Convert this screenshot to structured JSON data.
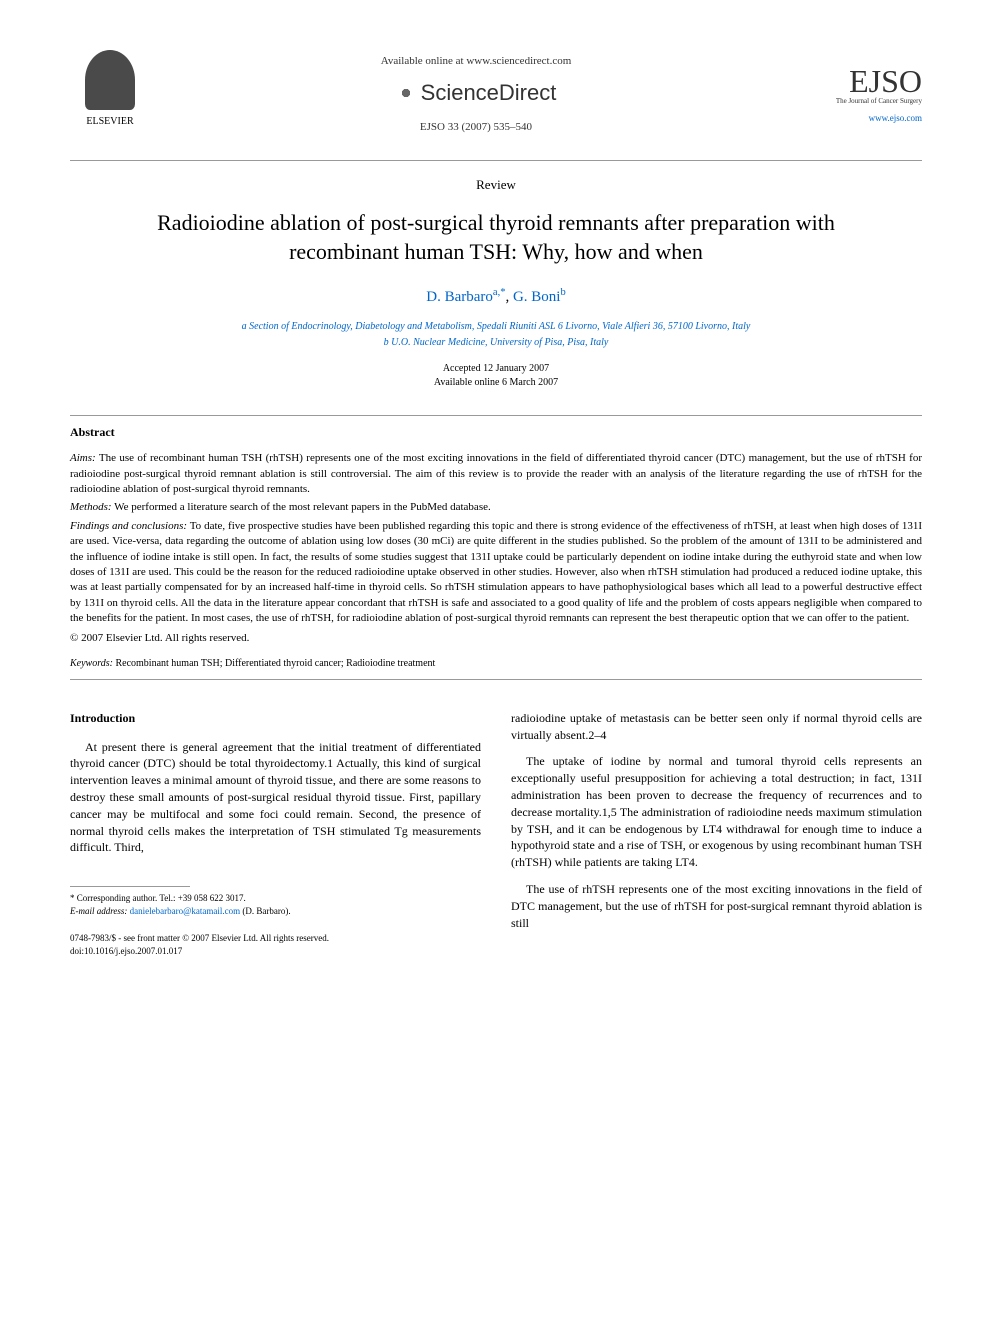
{
  "header": {
    "elsevier_label": "ELSEVIER",
    "available_text": "Available online at www.sciencedirect.com",
    "sciencedirect": "ScienceDirect",
    "citation": "EJSO 33 (2007) 535–540",
    "ejso_label": "EJSO",
    "ejso_subtitle": "The Journal of Cancer Surgery",
    "ejso_link": "www.ejso.com"
  },
  "article": {
    "type": "Review",
    "title": "Radioiodine ablation of post-surgical thyroid remnants after preparation with recombinant human TSH: Why, how and when",
    "authors_html": "D. Barbaro",
    "author1": "D. Barbaro",
    "author1_sup": "a,*",
    "author2": "G. Boni",
    "author2_sup": "b",
    "affiliation_a": "a Section of Endocrinology, Diabetology and Metabolism, Spedali Riuniti ASL 6 Livorno, Viale Alfieri 36, 57100 Livorno, Italy",
    "affiliation_b": "b U.O. Nuclear Medicine, University of Pisa, Pisa, Italy",
    "accepted": "Accepted 12 January 2007",
    "online": "Available online 6 March 2007"
  },
  "abstract": {
    "heading": "Abstract",
    "aims_label": "Aims:",
    "aims": " The use of recombinant human TSH (rhTSH) represents one of the most exciting innovations in the field of differentiated thyroid cancer (DTC) management, but the use of rhTSH for radioiodine post-surgical thyroid remnant ablation is still controversial. The aim of this review is to provide the reader with an analysis of the literature regarding the use of rhTSH for the radioiodine ablation of post-surgical thyroid remnants.",
    "methods_label": "Methods:",
    "methods": " We performed a literature search of the most relevant papers in the PubMed database.",
    "findings_label": "Findings and conclusions:",
    "findings": " To date, five prospective studies have been published regarding this topic and there is strong evidence of the effectiveness of rhTSH, at least when high doses of 131I are used. Vice-versa, data regarding the outcome of ablation using low doses (30 mCi) are quite different in the studies published. So the problem of the amount of 131I to be administered and the influence of iodine intake is still open. In fact, the results of some studies suggest that 131I uptake could be particularly dependent on iodine intake during the euthyroid state and when low doses of 131I are used. This could be the reason for the reduced radioiodine uptake observed in other studies. However, also when rhTSH stimulation had produced a reduced iodine uptake, this was at least partially compensated for by an increased half-time in thyroid cells. So rhTSH stimulation appears to have pathophysiological bases which all lead to a powerful destructive effect by 131I on thyroid cells. All the data in the literature appear concordant that rhTSH is safe and associated to a good quality of life and the problem of costs appears negligible when compared to the benefits for the patient. In most cases, the use of rhTSH, for radioiodine ablation of post-surgical thyroid remnants can represent the best therapeutic option that we can offer to the patient.",
    "copyright": "© 2007 Elsevier Ltd. All rights reserved.",
    "keywords_label": "Keywords:",
    "keywords": " Recombinant human TSH; Differentiated thyroid cancer; Radioiodine treatment"
  },
  "body": {
    "intro_heading": "Introduction",
    "col1_p1": "At present there is general agreement that the initial treatment of differentiated thyroid cancer (DTC) should be total thyroidectomy.1 Actually, this kind of surgical intervention leaves a minimal amount of thyroid tissue, and there are some reasons to destroy these small amounts of post-surgical residual thyroid tissue. First, papillary cancer may be multifocal and some foci could remain. Second, the presence of normal thyroid cells makes the interpretation of TSH stimulated Tg measurements difficult. Third,",
    "col2_p1": "radioiodine uptake of metastasis can be better seen only if normal thyroid cells are virtually absent.2–4",
    "col2_p2": "The uptake of iodine by normal and tumoral thyroid cells represents an exceptionally useful presupposition for achieving a total destruction; in fact, 131I administration has been proven to decrease the frequency of recurrences and to decrease mortality.1,5 The administration of radioiodine needs maximum stimulation by TSH, and it can be endogenous by LT4 withdrawal for enough time to induce a hypothyroid state and a rise of TSH, or exogenous by using recombinant human TSH (rhTSH) while patients are taking LT4.",
    "col2_p3": "The use of rhTSH represents one of the most exciting innovations in the field of DTC management, but the use of rhTSH for post-surgical remnant thyroid ablation is still"
  },
  "footnote": {
    "corresponding": "* Corresponding author. Tel.: +39 058 622 3017.",
    "email_label": "E-mail address:",
    "email": "danielebarbaro@katamail.com",
    "email_suffix": " (D. Barbaro)."
  },
  "footer": {
    "line1": "0748-7983/$ - see front matter © 2007 Elsevier Ltd. All rights reserved.",
    "line2": "doi:10.1016/j.ejso.2007.01.017"
  },
  "colors": {
    "link": "#0066cc",
    "text": "#000000",
    "gray": "#333333"
  }
}
